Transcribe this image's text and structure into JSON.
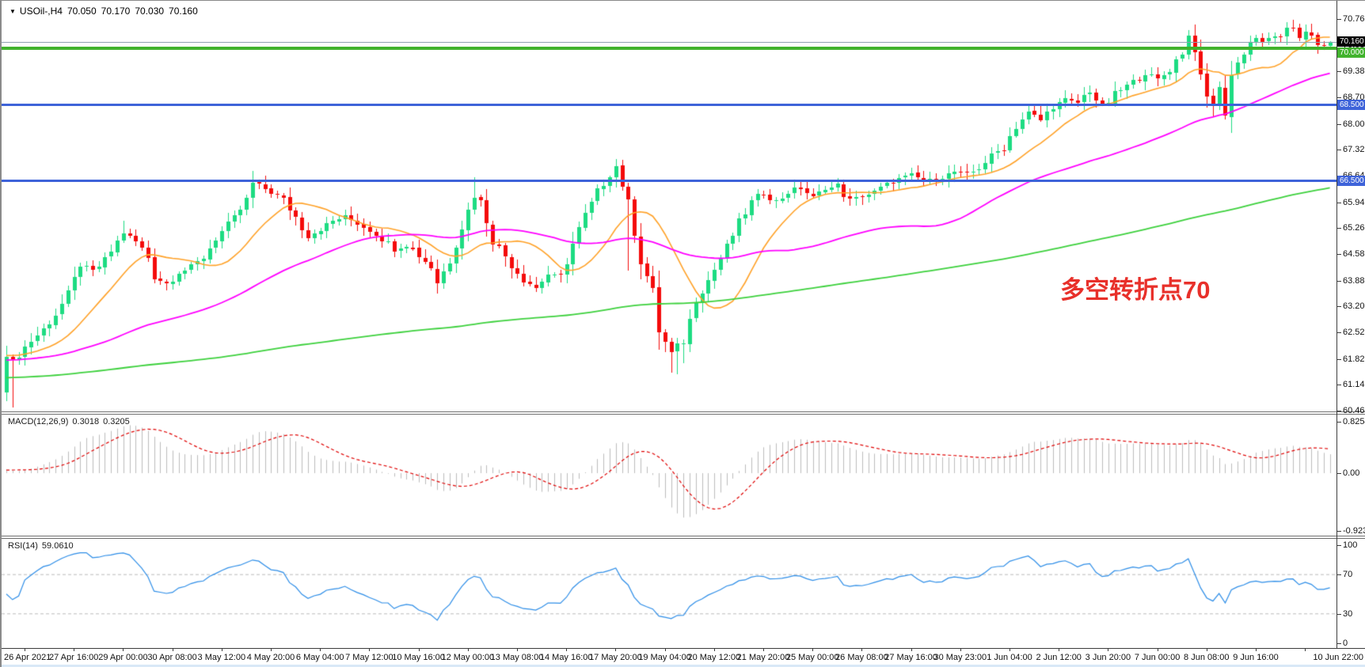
{
  "header": {
    "dropdown_icon": "▼",
    "symbol": "USOil-,H4",
    "open": "70.050",
    "high": "70.170",
    "low": "70.030",
    "close": "70.160"
  },
  "chart_data": {
    "type": "candlestick",
    "instrument": "USOil",
    "timeframe": "H4",
    "current_price": 70.16,
    "current_bar_ohlc": {
      "open": 70.05,
      "high": 70.17,
      "low": 70.03,
      "close": 70.16
    },
    "price_axis_ticks": [
      "70.760",
      "70.080",
      "69.380",
      "68.700",
      "68.000",
      "67.320",
      "66.640",
      "65.940",
      "65.260",
      "64.580",
      "63.880",
      "63.200",
      "62.520",
      "61.820",
      "61.140",
      "60.460"
    ],
    "time_axis_labels": [
      "26 Apr 2021",
      "27 Apr 16:00",
      "29 Apr 00:00",
      "30 Apr 08:00",
      "3 May 12:00",
      "4 May 20:00",
      "6 May 04:00",
      "7 May 12:00",
      "10 May 16:00",
      "12 May 00:00",
      "13 May 08:00",
      "14 May 16:00",
      "17 May 20:00",
      "19 May 04:00",
      "20 May 12:00",
      "21 May 20:00",
      "25 May 00:00",
      "26 May 08:00",
      "27 May 16:00",
      "30 May 23:00",
      "1 Jun 04:00",
      "2 Jun 12:00",
      "3 Jun 20:00",
      "7 Jun 00:00",
      "8 Jun 08:00",
      "9 Jun 16:00",
      "10 Jun 22:00"
    ],
    "close_path_anchors": [
      [
        0,
        62.0
      ],
      [
        1,
        61.7
      ],
      [
        2,
        61.95
      ],
      [
        4,
        62.3
      ],
      [
        6,
        62.6
      ],
      [
        8,
        63.0
      ],
      [
        10,
        63.5
      ],
      [
        12,
        64.3
      ],
      [
        14,
        64.1
      ],
      [
        16,
        64.4
      ],
      [
        19,
        65.15
      ],
      [
        21,
        64.9
      ],
      [
        23,
        64.5
      ],
      [
        24,
        63.95
      ],
      [
        26,
        63.8
      ],
      [
        28,
        64.1
      ],
      [
        30,
        64.2
      ],
      [
        32,
        64.5
      ],
      [
        34,
        65.0
      ],
      [
        37,
        65.5
      ],
      [
        39,
        66.0
      ],
      [
        40,
        66.45
      ],
      [
        42,
        66.3
      ],
      [
        45,
        66.0
      ],
      [
        47,
        65.55
      ],
      [
        49,
        65.05
      ],
      [
        51,
        65.25
      ],
      [
        53,
        65.45
      ],
      [
        55,
        65.55
      ],
      [
        57,
        65.4
      ],
      [
        59,
        65.2
      ],
      [
        61,
        65.0
      ],
      [
        63,
        64.7
      ],
      [
        65,
        64.85
      ],
      [
        67,
        64.55
      ],
      [
        69,
        64.25
      ],
      [
        70,
        63.85
      ],
      [
        72,
        64.4
      ],
      [
        74,
        65.3
      ],
      [
        76,
        66.15
      ],
      [
        77,
        65.95
      ],
      [
        79,
        64.95
      ],
      [
        82,
        64.3
      ],
      [
        84,
        63.9
      ],
      [
        86,
        63.7
      ],
      [
        88,
        64.05
      ],
      [
        90,
        63.95
      ],
      [
        92,
        64.85
      ],
      [
        94,
        65.6
      ],
      [
        96,
        66.2
      ],
      [
        98,
        66.7
      ],
      [
        99,
        66.9
      ],
      [
        101,
        65.9
      ],
      [
        103,
        64.4
      ],
      [
        105,
        63.6
      ],
      [
        106,
        62.55
      ],
      [
        108,
        61.95
      ],
      [
        110,
        62.3
      ],
      [
        112,
        63.4
      ],
      [
        114,
        63.9
      ],
      [
        117,
        64.75
      ],
      [
        119,
        65.4
      ],
      [
        121,
        65.95
      ],
      [
        123,
        66.2
      ],
      [
        125,
        65.95
      ],
      [
        127,
        66.2
      ],
      [
        129,
        66.35
      ],
      [
        131,
        66.05
      ],
      [
        133,
        66.3
      ],
      [
        135,
        66.35
      ],
      [
        137,
        66.0
      ],
      [
        139,
        66.1
      ],
      [
        141,
        66.2
      ],
      [
        143,
        66.4
      ],
      [
        145,
        66.55
      ],
      [
        147,
        66.65
      ],
      [
        149,
        66.5
      ],
      [
        152,
        66.6
      ],
      [
        154,
        66.75
      ],
      [
        156,
        66.65
      ],
      [
        158,
        66.85
      ],
      [
        160,
        67.15
      ],
      [
        162,
        67.4
      ],
      [
        164,
        67.95
      ],
      [
        166,
        68.3
      ],
      [
        168,
        68.1
      ],
      [
        170,
        68.45
      ],
      [
        172,
        68.65
      ],
      [
        174,
        68.55
      ],
      [
        176,
        68.9
      ],
      [
        178,
        68.4
      ],
      [
        180,
        68.8
      ],
      [
        183,
        69.1
      ],
      [
        185,
        69.35
      ],
      [
        187,
        69.15
      ],
      [
        189,
        69.45
      ],
      [
        191,
        69.9
      ],
      [
        192,
        70.3
      ],
      [
        193,
        70.0
      ],
      [
        194,
        69.2
      ],
      [
        195,
        68.7
      ],
      [
        196,
        68.55
      ],
      [
        197,
        68.9
      ],
      [
        198,
        68.3
      ],
      [
        199,
        69.3
      ],
      [
        201,
        69.9
      ],
      [
        202,
        70.15
      ],
      [
        203,
        70.3
      ],
      [
        204,
        70.1
      ],
      [
        205,
        70.25
      ],
      [
        206,
        70.35
      ],
      [
        207,
        70.2
      ],
      [
        208,
        70.45
      ],
      [
        209,
        70.55
      ],
      [
        210,
        70.3
      ],
      [
        211,
        70.5
      ],
      [
        212,
        70.25
      ],
      [
        213,
        70.05
      ],
      [
        214,
        70.05
      ],
      [
        215,
        70.16
      ]
    ],
    "extreme_points": [
      {
        "i": 0,
        "low": 60.75
      },
      {
        "i": 1,
        "low": 60.55
      },
      {
        "i": 19,
        "high": 65.45
      },
      {
        "i": 40,
        "high": 66.76
      },
      {
        "i": 76,
        "high": 66.6
      },
      {
        "i": 99,
        "high": 67.08
      },
      {
        "i": 101,
        "low": 64.15
      },
      {
        "i": 108,
        "low": 61.45
      },
      {
        "i": 109,
        "low": 61.42
      },
      {
        "i": 110,
        "low": 61.7
      },
      {
        "i": 192,
        "high": 70.45
      },
      {
        "i": 196,
        "low": 68.2
      },
      {
        "i": 198,
        "low": 68.15
      },
      {
        "i": 209,
        "high": 70.73
      },
      {
        "i": 211,
        "high": 70.62
      }
    ],
    "horizontal_lines": [
      {
        "price": 70.0,
        "label": "70.000",
        "color": "#41b32d",
        "thickness": 4
      },
      {
        "price": 68.5,
        "label": "68.500",
        "color": "#3e63d9",
        "thickness": 3
      },
      {
        "price": 66.5,
        "label": "66.500",
        "color": "#3e63d9",
        "thickness": 3
      }
    ],
    "current_price_line": {
      "price": 70.16,
      "label": "70.160",
      "line_color": "#8fa0b0",
      "tag_bg": "#000000",
      "tag_text": "#ffffff"
    },
    "moving_averages": [
      {
        "name": "fast",
        "color": "#ffa228"
      },
      {
        "name": "mid",
        "color": "#ff00ff"
      },
      {
        "name": "slow",
        "color": "#3dd13d"
      }
    ],
    "candle_colors": {
      "bull": "#1ddc82",
      "bear": "#f40b0b"
    },
    "annotation": {
      "text": "多空转折点70",
      "color": "#e8302a"
    }
  },
  "macd_panel": {
    "label": "MACD(12,26,9)",
    "value_main": "0.3018",
    "value_signal": "0.3205",
    "axis_ticks": [
      "0.8254",
      "0.00",
      "-0.9234"
    ],
    "axis_values": [
      0.8254,
      0,
      -0.9234
    ],
    "histogram_color": "#bdbdbd",
    "signal_color": "#e00404"
  },
  "rsi_panel": {
    "label": "RSI(14)",
    "value": "59.0610",
    "axis_ticks": [
      "100",
      "70",
      "30",
      "0"
    ],
    "axis_values": [
      100,
      70,
      30,
      0
    ],
    "levels": [
      70,
      30
    ],
    "line_color": "#2e8ee8",
    "level_color": "#bbbbbb"
  }
}
